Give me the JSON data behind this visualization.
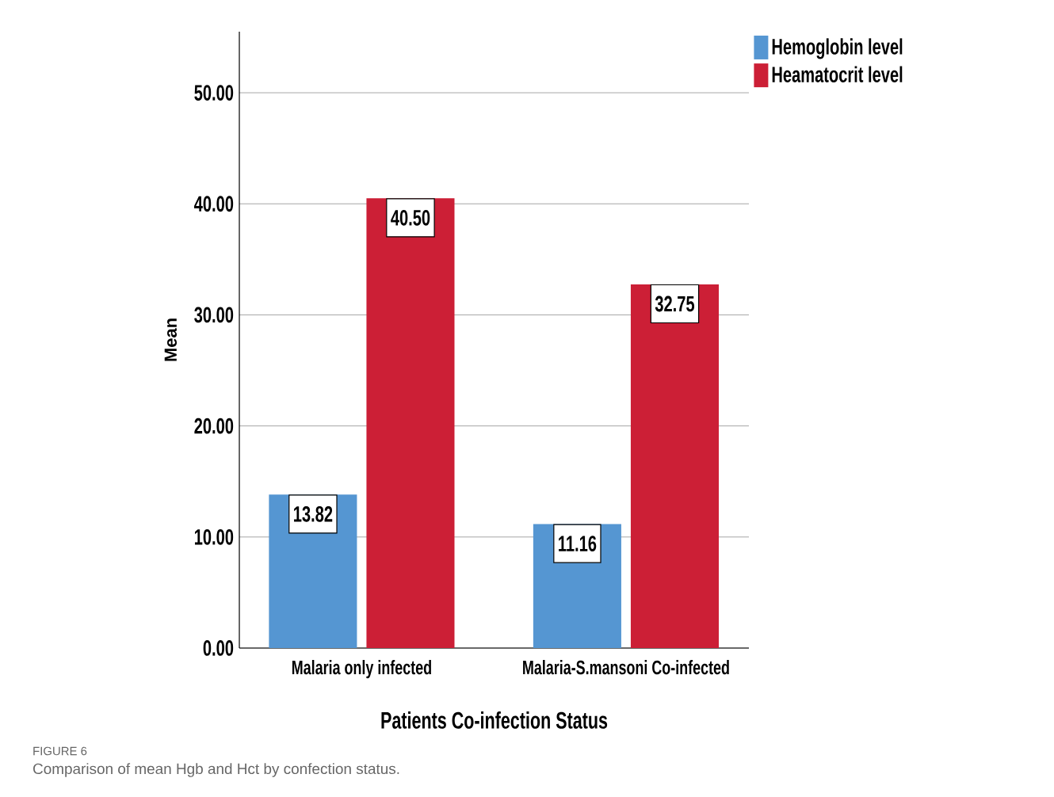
{
  "chart_data": {
    "type": "bar",
    "xlabel": "Patients Co-infection Status",
    "ylabel": "Mean",
    "categories": [
      "Malaria only infected",
      "Malaria-S.mansoni Co-infected"
    ],
    "series": [
      {
        "name": "Hemoglobin level",
        "color": "#5596d2",
        "values": [
          13.82,
          11.16
        ],
        "value_labels": [
          "13.82",
          "11.16"
        ]
      },
      {
        "name": "Heamatocrit level",
        "color": "#cc1f36",
        "values": [
          40.5,
          32.75
        ],
        "value_labels": [
          "40.50",
          "32.75"
        ]
      }
    ],
    "ylim": [
      0,
      55.5
    ],
    "yticks": [
      {
        "value": 0,
        "label": "0.00"
      },
      {
        "value": 10,
        "label": "10.00"
      },
      {
        "value": 20,
        "label": "20.00"
      },
      {
        "value": 30,
        "label": "30.00"
      },
      {
        "value": 40,
        "label": "40.00"
      },
      {
        "value": 50,
        "label": "50.00"
      }
    ],
    "grid": "y",
    "legend": "top right",
    "annotations": [
      "FIGURE 6",
      "Comparison of mean Hgb and Hct by confection status."
    ]
  }
}
